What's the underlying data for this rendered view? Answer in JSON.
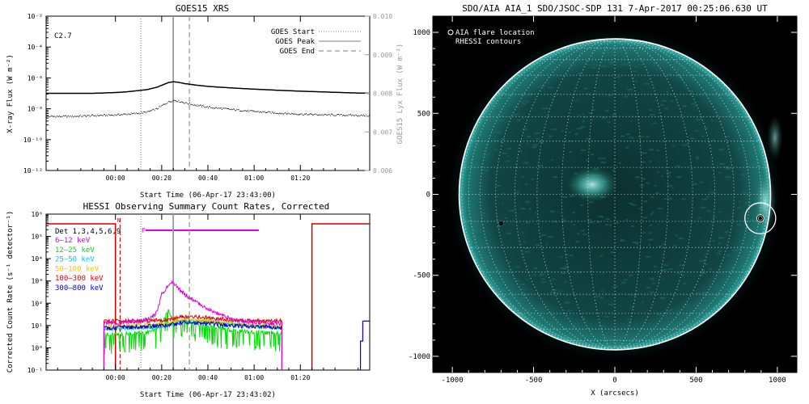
{
  "colors": {
    "background": "#ffffff",
    "goes_line": "#000000",
    "goes_markers": "#999999",
    "rhessi_flag": "#cc0000",
    "f_flag": "#e000e0",
    "aia_bg": "#000000",
    "aia_disk": "#0f3e3c",
    "limb": "#ffffff"
  },
  "chart_data": [
    {
      "id": "goes",
      "type": "line",
      "title": "GOES15 XRS",
      "annotation": "C2.7",
      "xlabel": "Start Time (06-Apr-17 23:43:00)",
      "ylabel": "X-ray Flux (W m⁻²)",
      "ylabel_right": "GOES15 Lyx Flux (W m⁻²)",
      "xlim_min": [
        -30,
        110
      ],
      "ylim_log": [
        -12,
        -2
      ],
      "yticks_log": [
        -12,
        -10,
        -8,
        -6,
        -4,
        -2
      ],
      "ytick_labels": [
        "10⁻¹²",
        "10⁻¹⁰",
        "10⁻⁸",
        "10⁻⁶",
        "10⁻⁴",
        "10⁻²"
      ],
      "yticks_right": [
        0.006,
        0.007,
        0.008,
        0.009,
        0.01
      ],
      "ytick_right_labels": [
        "0.006",
        "0.007",
        "0.008",
        "0.009",
        "0.010"
      ],
      "xticks_min": [
        0,
        20,
        40,
        60,
        80
      ],
      "xtick_labels": [
        "00:00",
        "00:20",
        "00:40",
        "01:00",
        "01:20"
      ],
      "legend": [
        "GOES Start",
        "GOES Peak",
        "GOES End"
      ],
      "legend_position": "top-right",
      "markers_min": {
        "start": 11,
        "peak": 25,
        "end": 32
      },
      "series": [
        {
          "name": "XRS long",
          "style": "solid",
          "x": [
            -30,
            -20,
            -10,
            0,
            5,
            10,
            14,
            18,
            21,
            23,
            25,
            27,
            30,
            35,
            40,
            50,
            60,
            70,
            80,
            90,
            100,
            110
          ],
          "log_y": [
            -7.0,
            -7.0,
            -7.0,
            -6.95,
            -6.9,
            -6.82,
            -6.75,
            -6.6,
            -6.42,
            -6.3,
            -6.25,
            -6.28,
            -6.37,
            -6.47,
            -6.55,
            -6.65,
            -6.73,
            -6.8,
            -6.86,
            -6.91,
            -6.96,
            -7.0
          ]
        },
        {
          "name": "XRS short",
          "style": "dotted",
          "x": [
            -30,
            -20,
            -10,
            0,
            5,
            10,
            14,
            18,
            21,
            23,
            25,
            27,
            30,
            35,
            40,
            50,
            60,
            70,
            80,
            90,
            100,
            110
          ],
          "log_y": [
            -8.5,
            -8.5,
            -8.45,
            -8.4,
            -8.35,
            -8.3,
            -8.2,
            -8.0,
            -7.7,
            -7.55,
            -7.45,
            -7.5,
            -7.62,
            -7.78,
            -7.9,
            -8.05,
            -8.18,
            -8.28,
            -8.35,
            -8.4,
            -8.42,
            -8.45
          ]
        }
      ]
    },
    {
      "id": "hessi",
      "type": "line",
      "title": "HESSI Observing Summary Count Rates, Corrected",
      "xlabel": "Start Time (06-Apr-17 23:43:02)",
      "ylabel": "Corrected Count Rate (s⁻¹ detector⁻¹)",
      "xlim_min": [
        -30,
        110
      ],
      "ylim_log": [
        -1,
        6
      ],
      "yticks_log": [
        -1,
        0,
        1,
        2,
        3,
        4,
        5,
        6
      ],
      "ytick_labels": [
        "10⁻¹",
        "10⁰",
        "10¹",
        "10²",
        "10³",
        "10⁴",
        "10⁵",
        "10⁶"
      ],
      "xticks_min": [
        0,
        20,
        40,
        60,
        80
      ],
      "xtick_labels": [
        "00:00",
        "00:20",
        "00:40",
        "01:00",
        "01:20"
      ],
      "legend_title": "Det 1,3,4,5,6,9",
      "legend_position": "top-left",
      "flags": {
        "n_label": "N",
        "f_label": "F",
        "night_end_min": 0,
        "f_start_min": 13,
        "f_end_min": 62,
        "day_start_min": 85
      },
      "markers_min": {
        "start": 11,
        "peak": 25,
        "end": 32,
        "night": 2
      },
      "series": [
        {
          "name": "6–12 keV",
          "color": "#e000e0",
          "x": [
            -5,
            0,
            10,
            15,
            18,
            19,
            20,
            22,
            23,
            24,
            25,
            26,
            28,
            30,
            35,
            40,
            45,
            50,
            55,
            60,
            65,
            72
          ],
          "log_y": [
            1.1,
            1.1,
            1.2,
            1.3,
            1.6,
            2.0,
            2.4,
            2.7,
            2.85,
            2.92,
            2.88,
            2.8,
            2.6,
            2.4,
            2.05,
            1.75,
            1.5,
            1.3,
            1.2,
            1.15,
            1.1,
            1.1
          ]
        },
        {
          "name": "12–25 keV",
          "color": "#00e000",
          "x": [
            -5,
            0,
            10,
            15,
            18,
            20,
            22,
            23,
            24,
            25,
            27,
            30,
            35,
            40,
            50,
            60,
            72
          ],
          "log_y": [
            0.6,
            0.6,
            0.65,
            0.7,
            0.9,
            1.2,
            1.5,
            1.65,
            1.45,
            1.3,
            1.2,
            1.15,
            1.1,
            1.0,
            0.8,
            0.7,
            0.65
          ]
        },
        {
          "name": "25–50 keV",
          "color": "#00c8e6",
          "x": [
            -5,
            0,
            10,
            20,
            25,
            30,
            40,
            50,
            60,
            72
          ],
          "log_y": [
            0.85,
            0.85,
            0.9,
            0.95,
            1.1,
            1.2,
            1.15,
            1.05,
            0.95,
            0.9
          ]
        },
        {
          "name": "50–100 keV",
          "color": "#e6c800",
          "x": [
            -5,
            0,
            10,
            20,
            25,
            30,
            40,
            50,
            60,
            72
          ],
          "log_y": [
            0.95,
            0.95,
            1.0,
            1.05,
            1.15,
            1.25,
            1.2,
            1.1,
            1.0,
            0.95
          ]
        },
        {
          "name": "100–300 keV",
          "color": "#e60000",
          "x": [
            -5,
            0,
            10,
            20,
            25,
            30,
            40,
            50,
            60,
            72
          ],
          "log_y": [
            1.2,
            1.2,
            1.2,
            1.25,
            1.3,
            1.4,
            1.35,
            1.25,
            1.2,
            1.2
          ]
        },
        {
          "name": "300–800 keV",
          "color": "#0000d2",
          "x": [
            -5,
            0,
            10,
            20,
            25,
            30,
            40,
            50,
            60,
            72
          ],
          "log_y": [
            0.9,
            0.9,
            0.95,
            1.0,
            1.05,
            1.15,
            1.1,
            1.0,
            0.95,
            0.9
          ]
        }
      ]
    },
    {
      "id": "aia",
      "type": "scatter",
      "title": "SDO/AIA AIA_1 SDO/JSOC-SDP 131   7-Apr-2017 00:25:06.630 UT",
      "xlabel": "X (arcsecs)",
      "ylabel": "Y (arcsecs)",
      "xlim": [
        -1120,
        1120
      ],
      "ylim": [
        -1100,
        1100
      ],
      "xticks": [
        -1000,
        -500,
        0,
        500,
        1000
      ],
      "yticks": [
        -1000,
        -500,
        0,
        500,
        1000
      ],
      "legend": [
        "AIA flare location",
        "RHESSI contours"
      ],
      "legend_position": "top-left",
      "solar_radius_arcsec": 958,
      "flare": {
        "x": 895,
        "y": -148,
        "circle_radius_arcsec": 95
      },
      "active_region": {
        "x": -140,
        "y": 60
      }
    }
  ]
}
